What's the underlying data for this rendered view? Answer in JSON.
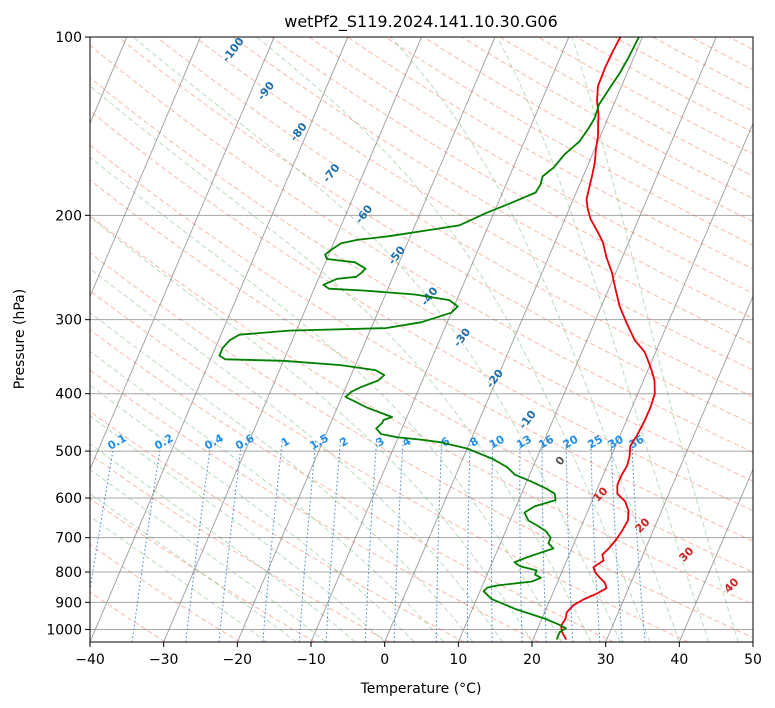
{
  "chart_data": {
    "type": "line",
    "title": "wetPf2_S119.2024.141.10.30.G06",
    "xlabel": "Temperature (°C)",
    "ylabel": "Pressure (hPa)",
    "xlim": [
      -40,
      50
    ],
    "ylim": [
      1050,
      100
    ],
    "y_scale": "log",
    "grid": true,
    "x_ticks": [
      "−40",
      "−30",
      "−20",
      "−10",
      "0",
      "10",
      "20",
      "30",
      "40",
      "50"
    ],
    "y_ticks": [
      {
        "p": 100,
        "label": "100"
      },
      {
        "p": 200,
        "label": "200"
      },
      {
        "p": 300,
        "label": "300"
      },
      {
        "p": 400,
        "label": "400"
      },
      {
        "p": 500,
        "label": "500"
      },
      {
        "p": 600,
        "label": "600"
      },
      {
        "p": 700,
        "label": "700"
      },
      {
        "p": 800,
        "label": "800"
      },
      {
        "p": 900,
        "label": "900"
      },
      {
        "p": 1000,
        "label": "1000"
      }
    ],
    "colors": {
      "temperature": "#e8000b",
      "dewpoint": "#007f00",
      "dry_adiabat": "#f08060",
      "moist_adiabat": "#80c080",
      "mixing_ratio": "#1f77d4",
      "isotherm": "#808080",
      "mixing_label": "#1f8ee8",
      "dry_label": "#1f6faa",
      "moist_label": "#cc2222"
    },
    "series": [
      {
        "values": [
          [
            24.5,
            1040
          ],
          [
            23.5,
            1010
          ],
          [
            23.0,
            985
          ],
          [
            23.2,
            960
          ],
          [
            23.0,
            935
          ],
          [
            23.5,
            910
          ],
          [
            24.5,
            890
          ],
          [
            26.0,
            870
          ],
          [
            27.0,
            852
          ],
          [
            26.5,
            835
          ],
          [
            25.5,
            818
          ],
          [
            24.5,
            800
          ],
          [
            24.0,
            785
          ],
          [
            25.0,
            765
          ],
          [
            24.5,
            748
          ],
          [
            25.0,
            730
          ],
          [
            25.5,
            705
          ],
          [
            25.8,
            680
          ],
          [
            26.0,
            655
          ],
          [
            25.5,
            630
          ],
          [
            24.5,
            608
          ],
          [
            23.0,
            590
          ],
          [
            22.5,
            570
          ],
          [
            22.5,
            550
          ],
          [
            22.7,
            530
          ],
          [
            22.5,
            510
          ],
          [
            22.0,
            490
          ],
          [
            22.3,
            470
          ],
          [
            22.5,
            445
          ],
          [
            22.5,
            420
          ],
          [
            22.3,
            400
          ],
          [
            21.5,
            380
          ],
          [
            20.5,
            365
          ],
          [
            19.5,
            352
          ],
          [
            18.5,
            340
          ],
          [
            16.5,
            325
          ],
          [
            14.5,
            305
          ],
          [
            12.5,
            285
          ],
          [
            10.8,
            265
          ],
          [
            9.5,
            250
          ],
          [
            7.8,
            235
          ],
          [
            6.5,
            222
          ],
          [
            5.0,
            212
          ],
          [
            3.5,
            203
          ],
          [
            2.5,
            195
          ],
          [
            1.8,
            188
          ],
          [
            1.5,
            180
          ],
          [
            1.2,
            172
          ],
          [
            0.8,
            163
          ],
          [
            0.2,
            155
          ],
          [
            -0.3,
            147
          ],
          [
            -1.0,
            140
          ],
          [
            -1.5,
            135
          ],
          [
            -2.5,
            128
          ],
          [
            -3.2,
            121
          ],
          [
            -3.3,
            113
          ],
          [
            -3.2,
            106
          ],
          [
            -3.0,
            100
          ]
        ]
      },
      {
        "values": [
          [
            23.2,
            1040
          ],
          [
            23.2,
            1010
          ],
          [
            23.8,
            995
          ],
          [
            22.5,
            980
          ],
          [
            20.5,
            960
          ],
          [
            16.0,
            925
          ],
          [
            12.0,
            888
          ],
          [
            10.5,
            862
          ],
          [
            10.8,
            850
          ],
          [
            12.0,
            843
          ],
          [
            16.5,
            830
          ],
          [
            17.5,
            818
          ],
          [
            16.5,
            808
          ],
          [
            16.5,
            795
          ],
          [
            14.0,
            782
          ],
          [
            13.0,
            770
          ],
          [
            14.5,
            755
          ],
          [
            16.0,
            742
          ],
          [
            17.5,
            730
          ],
          [
            16.5,
            715
          ],
          [
            16.5,
            700
          ],
          [
            15.5,
            683
          ],
          [
            14.0,
            668
          ],
          [
            12.5,
            655
          ],
          [
            11.5,
            635
          ],
          [
            12.5,
            620
          ],
          [
            15.0,
            605
          ],
          [
            14.5,
            590
          ],
          [
            13.0,
            578
          ],
          [
            10.5,
            562
          ],
          [
            8.0,
            548
          ],
          [
            6.5,
            532
          ],
          [
            4.0,
            515
          ],
          [
            0.0,
            495
          ],
          [
            -4.0,
            483
          ],
          [
            -7.0,
            478
          ],
          [
            -10.0,
            474
          ],
          [
            -12.5,
            468
          ],
          [
            -13.5,
            458
          ],
          [
            -13.0,
            448
          ],
          [
            -13.0,
            443
          ],
          [
            -12.0,
            438
          ],
          [
            -14.0,
            430
          ],
          [
            -16.0,
            422
          ],
          [
            -18.0,
            412
          ],
          [
            -19.5,
            405
          ],
          [
            -19.0,
            397
          ],
          [
            -18.0,
            390
          ],
          [
            -16.0,
            380
          ],
          [
            -15.5,
            372
          ],
          [
            -17.0,
            365
          ],
          [
            -22.0,
            358
          ],
          [
            -30.0,
            352
          ],
          [
            -38.0,
            350
          ],
          [
            -39.0,
            345
          ],
          [
            -39.0,
            335
          ],
          [
            -38.5,
            325
          ],
          [
            -37.5,
            318
          ],
          [
            -31.0,
            313
          ],
          [
            -18.0,
            310
          ],
          [
            -13.5,
            303
          ],
          [
            -10.0,
            292
          ],
          [
            -9.5,
            285
          ],
          [
            -11.0,
            278
          ],
          [
            -16.0,
            272
          ],
          [
            -23.0,
            268
          ],
          [
            -28.0,
            266
          ],
          [
            -29.0,
            262
          ],
          [
            -27.5,
            256
          ],
          [
            -25.0,
            254
          ],
          [
            -24.5,
            250
          ],
          [
            -24.2,
            246
          ],
          [
            -26.0,
            240
          ],
          [
            -30.0,
            237
          ],
          [
            -30.5,
            233
          ],
          [
            -30.0,
            229
          ],
          [
            -29.0,
            223
          ],
          [
            -27.0,
            220
          ],
          [
            -23.0,
            217
          ],
          [
            -19.0,
            213
          ],
          [
            -14.0,
            208
          ],
          [
            -12.5,
            203
          ],
          [
            -11.0,
            198
          ],
          [
            -8.0,
            190
          ],
          [
            -5.5,
            183
          ],
          [
            -5.3,
            177
          ],
          [
            -5.5,
            172
          ],
          [
            -4.5,
            166
          ],
          [
            -3.8,
            158
          ],
          [
            -2.5,
            150
          ],
          [
            -2.0,
            142
          ],
          [
            -1.8,
            137
          ],
          [
            -2.0,
            130
          ],
          [
            -1.5,
            122
          ],
          [
            -1.0,
            115
          ],
          [
            -0.7,
            108
          ],
          [
            -0.5,
            100
          ]
        ]
      }
    ],
    "dry_adiabat_labels": [
      "-100",
      "-90",
      "-80",
      "-70",
      "-60",
      "-50",
      "-40",
      "-30",
      "-20",
      "-10",
      "0"
    ],
    "moist_adiabat_labels": [
      "10",
      "20",
      "30",
      "40"
    ],
    "mixing_ratio_labels": [
      "0.1",
      "0.2",
      "0.4",
      "0.6",
      "1",
      "1.5",
      "2",
      "3",
      "4",
      "6",
      "8",
      "10",
      "13",
      "16",
      "20",
      "25",
      "30",
      "36"
    ]
  }
}
